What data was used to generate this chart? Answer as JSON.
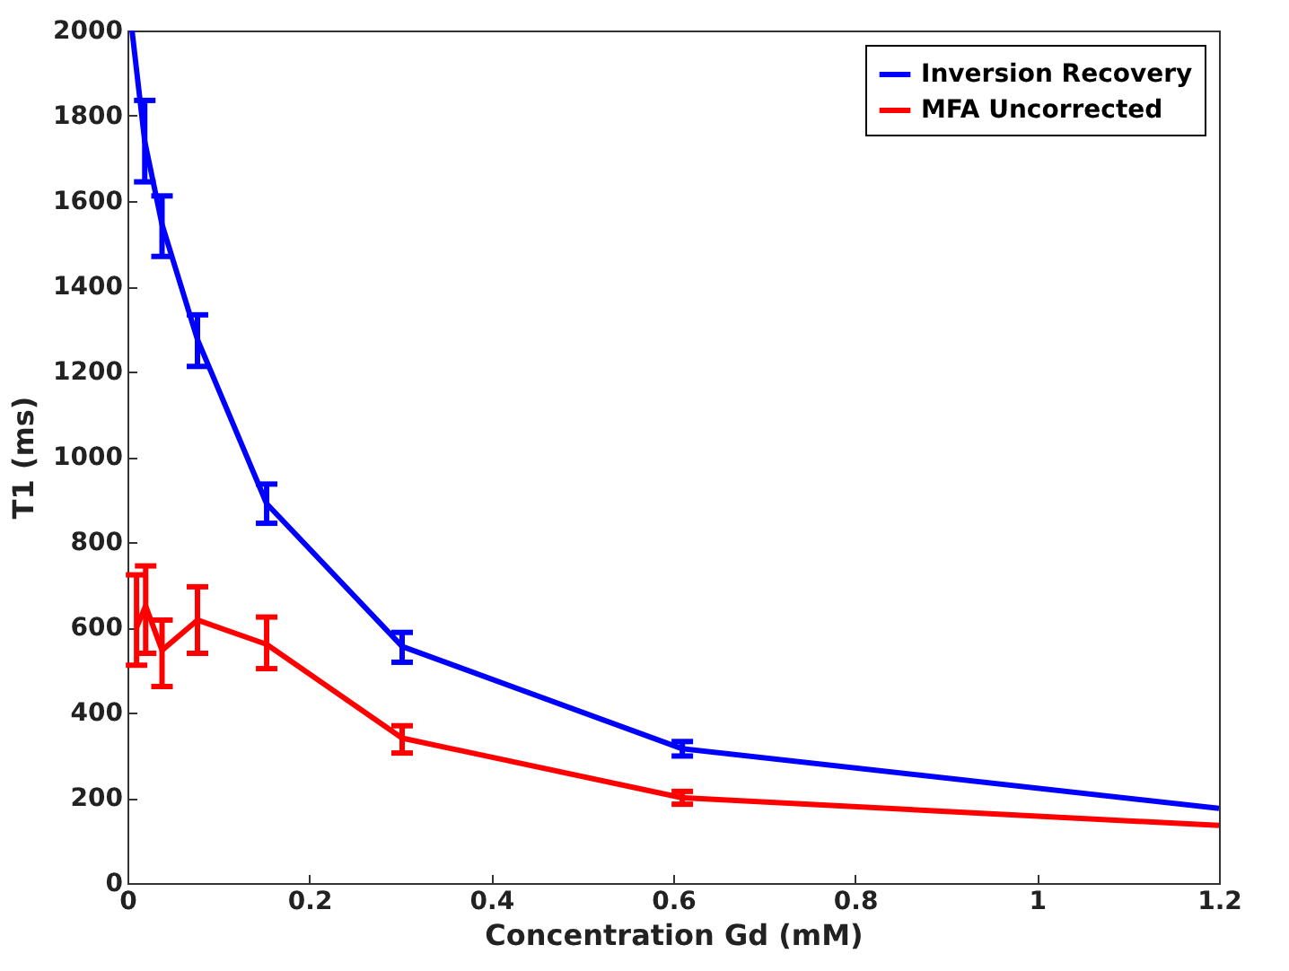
{
  "chart_data": {
    "type": "line",
    "xlabel": "Concentration Gd (mM)",
    "ylabel": "T1 (ms)",
    "x": [
      0.005,
      0.019,
      0.038,
      0.077,
      0.153,
      0.302,
      0.61,
      1.2
    ],
    "series": [
      {
        "name": "Inversion Recovery",
        "color": "#0000ff",
        "values": [
          2000,
          1740,
          1545,
          1275,
          890,
          555,
          315,
          175
        ],
        "errors": [
          null,
          [
            1645,
            1836
          ],
          [
            1470,
            1612
          ],
          [
            1212,
            1333
          ],
          [
            844,
            936
          ],
          [
            518,
            588
          ],
          [
            298,
            332
          ],
          null
        ]
      },
      {
        "name": "MFA Uncorrected",
        "color": "#ff0000",
        "x": [
          0.01,
          0.02,
          0.038,
          0.077,
          0.153,
          0.302,
          0.61,
          1.2
        ],
        "values": [
          600,
          650,
          546,
          617,
          560,
          340,
          200,
          135
        ],
        "errors": [
          [
            511,
            723
          ],
          [
            539,
            744
          ],
          [
            461,
            617
          ],
          [
            539,
            695
          ],
          [
            503,
            624
          ],
          [
            305,
            369
          ],
          [
            185,
            215
          ],
          null
        ]
      }
    ],
    "xlim": [
      0,
      1.2
    ],
    "xticks": [
      0,
      0.2,
      0.4,
      0.6,
      0.8,
      1,
      1.2
    ],
    "ylim": [
      0,
      2000
    ],
    "yticks": [
      0,
      200,
      400,
      600,
      800,
      1000,
      1200,
      1400,
      1600,
      1800,
      2000
    ],
    "legend": "top right",
    "grid": false,
    "marker": "none",
    "line_style": "solid"
  }
}
